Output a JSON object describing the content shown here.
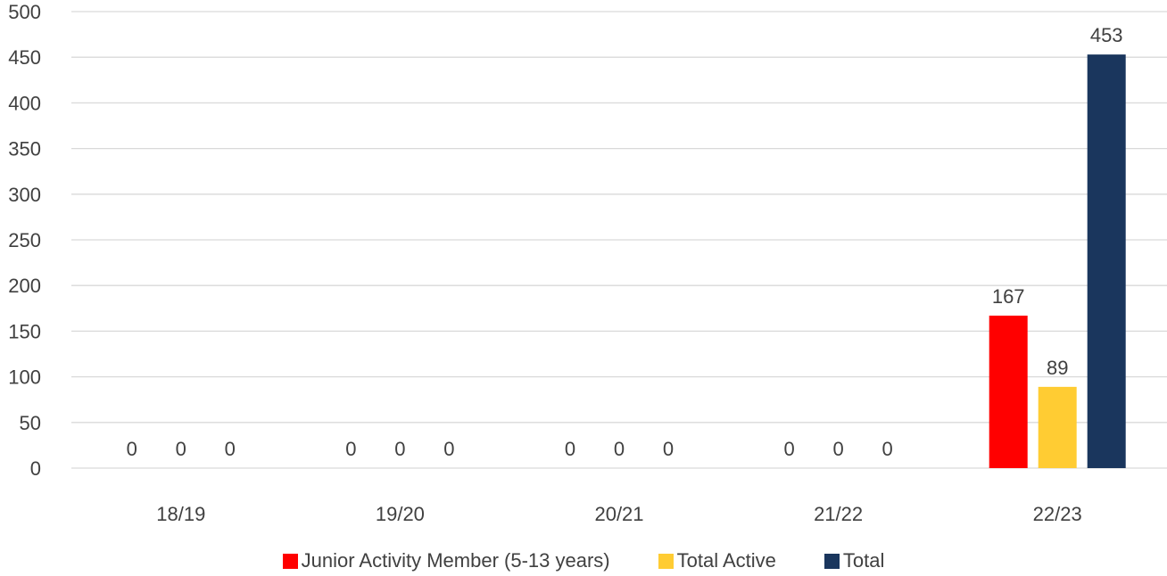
{
  "chart_data": {
    "type": "bar",
    "categories": [
      "18/19",
      "19/20",
      "20/21",
      "21/22",
      "22/23"
    ],
    "series": [
      {
        "name": "Junior Activity Member (5-13 years)",
        "values": [
          0,
          0,
          0,
          0,
          167
        ],
        "color": "#ff0000"
      },
      {
        "name": "Total Active",
        "values": [
          0,
          0,
          0,
          0,
          89
        ],
        "color": "#ffcc33"
      },
      {
        "name": "Total",
        "values": [
          0,
          0,
          0,
          0,
          453
        ],
        "color": "#1a365d"
      }
    ],
    "yticks": [
      "0",
      "50",
      "100",
      "150",
      "200",
      "250",
      "300",
      "350",
      "400",
      "450",
      "500"
    ],
    "ylim": [
      0,
      500
    ],
    "grid": true,
    "legend_position": "bottom"
  }
}
